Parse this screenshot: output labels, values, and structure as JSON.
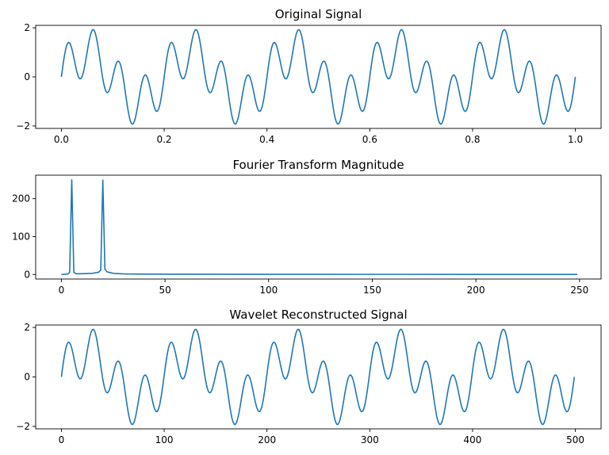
{
  "chart_data": [
    {
      "type": "line",
      "title": "Original Signal",
      "xlabel": "",
      "ylabel": "",
      "xlim": [
        -0.05,
        1.05
      ],
      "ylim": [
        -2.1,
        2.1
      ],
      "xticks": [
        0.0,
        0.2,
        0.4,
        0.6,
        0.8,
        1.0
      ],
      "xtick_labels": [
        "0.0",
        "0.2",
        "0.4",
        "0.6",
        "0.8",
        "1.0"
      ],
      "yticks": [
        -2,
        0,
        2
      ],
      "ytick_labels": [
        "−2",
        "0",
        "2"
      ],
      "color": "#1f77b4",
      "grid": false,
      "signal": {
        "x_start": 0.0,
        "x_end": 1.0,
        "n_points": 500,
        "components": [
          {
            "frequency": 5,
            "amplitude": 1
          },
          {
            "frequency": 20,
            "amplitude": 1
          }
        ]
      }
    },
    {
      "type": "line",
      "title": "Fourier Transform Magnitude",
      "xlabel": "",
      "ylabel": "",
      "xlim": [
        -12.4,
        260.4
      ],
      "ylim": [
        -12,
        262
      ],
      "xticks": [
        0,
        50,
        100,
        150,
        200,
        250
      ],
      "xtick_labels": [
        "0",
        "50",
        "100",
        "150",
        "200",
        "250"
      ],
      "yticks": [
        0,
        100,
        200
      ],
      "ytick_labels": [
        "0",
        "100",
        "200"
      ],
      "color": "#1f77b4",
      "grid": false,
      "points": [
        [
          0,
          0
        ],
        [
          3,
          1
        ],
        [
          4,
          5
        ],
        [
          5,
          250
        ],
        [
          6,
          6
        ],
        [
          7,
          2
        ],
        [
          10,
          2
        ],
        [
          15,
          3
        ],
        [
          18,
          6
        ],
        [
          19,
          12
        ],
        [
          20,
          249
        ],
        [
          21,
          14
        ],
        [
          22,
          7
        ],
        [
          25,
          3
        ],
        [
          30,
          1.5
        ],
        [
          40,
          1
        ],
        [
          60,
          0.7
        ],
        [
          100,
          0.5
        ],
        [
          150,
          0.3
        ],
        [
          200,
          0.2
        ],
        [
          249,
          0.1
        ]
      ]
    },
    {
      "type": "line",
      "title": "Wavelet Reconstructed Signal",
      "xlabel": "",
      "ylabel": "",
      "xlim": [
        -25,
        525
      ],
      "ylim": [
        -2.1,
        2.1
      ],
      "xticks": [
        0,
        100,
        200,
        300,
        400,
        500
      ],
      "xtick_labels": [
        "0",
        "100",
        "200",
        "300",
        "400",
        "500"
      ],
      "yticks": [
        -2,
        0,
        2
      ],
      "ytick_labels": [
        "−2",
        "0",
        "2"
      ],
      "color": "#1f77b4",
      "grid": false,
      "signal": {
        "x_start": 0,
        "x_end": 499,
        "n_points": 500,
        "components": [
          {
            "frequency": 5,
            "amplitude": 1
          },
          {
            "frequency": 20,
            "amplitude": 1
          }
        ]
      }
    }
  ]
}
